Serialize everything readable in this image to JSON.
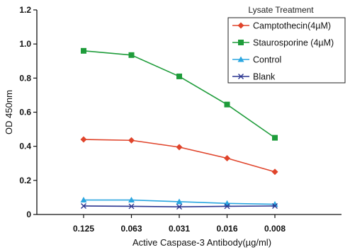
{
  "chart_data": {
    "type": "line",
    "title": "",
    "xlabel": "Active Caspase-3 Antibody(µg/ml)",
    "ylabel": "OD 450nm",
    "categories": [
      "0.125",
      "0.063",
      "0.031",
      "0.016",
      "0.008"
    ],
    "ylim": [
      0,
      1.2
    ],
    "yticks": [
      "0",
      "0.2",
      "0.4",
      "0.6",
      "0.8",
      "1.0",
      "1.2"
    ],
    "legend": {
      "title": "Lysate Treatment",
      "position": "top-right"
    },
    "grid": false,
    "series": [
      {
        "name": "Camptothecin(4µM)",
        "marker": "diamond",
        "color": "#e0442b",
        "values": [
          0.44,
          0.435,
          0.395,
          0.33,
          0.25
        ]
      },
      {
        "name": "Staurosporine (4µM)",
        "marker": "square",
        "color": "#1e9c3a",
        "values": [
          0.96,
          0.935,
          0.81,
          0.645,
          0.45
        ]
      },
      {
        "name": "Control",
        "marker": "triangle",
        "color": "#2aa6e0",
        "values": [
          0.085,
          0.085,
          0.075,
          0.065,
          0.06
        ]
      },
      {
        "name": "Blank",
        "marker": "x",
        "color": "#2b3590",
        "values": [
          0.05,
          0.048,
          0.045,
          0.048,
          0.05
        ]
      }
    ]
  }
}
